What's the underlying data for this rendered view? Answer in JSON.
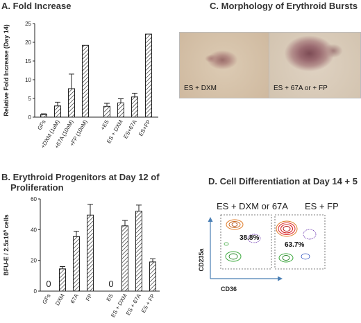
{
  "panels": {
    "a_title": "A. Fold Increase",
    "b_title_line1": "B. Erythroid Progenitors at Day 12 of",
    "b_title_line2": "Proliferation",
    "c_title": "C. Morphology of Erythroid Bursts",
    "d_title": "D. Cell Differentiation at Day 14 + 5"
  },
  "morphology": {
    "left_label": "ES + DXM",
    "right_label": "ES + 67A or + FP"
  },
  "flow": {
    "left_title": "ES + DXM or 67A",
    "right_title": "ES + FP",
    "left_percent": "38.8%",
    "right_percent": "63.7%",
    "y_label": "CD235a",
    "x_label": "CD36"
  },
  "chart_data": [
    {
      "type": "bar",
      "title": "A. Fold Increase",
      "ylabel": "Relative Fold Increase (Day 14)",
      "xlabel": "",
      "ylim": [
        0,
        25
      ],
      "yticks": [
        "0",
        "5",
        "10",
        "15",
        "20",
        "25"
      ],
      "categories": [
        "GFs",
        "+DXM (1uM)",
        "+67A (10nM)",
        "+FP (10nM)",
        "+ES",
        "ES + DXM",
        "ES+67A",
        "ES+FP"
      ],
      "values": [
        0.7,
        3.0,
        7.6,
        19.2,
        2.9,
        3.8,
        5.4,
        22.2
      ],
      "errors": [
        0.2,
        1.0,
        3.9,
        0,
        0.8,
        1.1,
        1.0,
        0
      ],
      "grid": false,
      "pattern": "diagonal-hatch"
    },
    {
      "type": "bar",
      "title": "B. Erythroid Progenitors at Day 12 of Proliferation",
      "ylabel": "BFU-E / 2.5x10",
      "ylabel_sup": "5",
      "ylabel_tail": " cells",
      "xlabel": "",
      "ylim": [
        0,
        60
      ],
      "yticks": [
        "0",
        "20",
        "40",
        "60"
      ],
      "categories": [
        "GFs",
        "DXM",
        "67A",
        "FP",
        "ES",
        "ES + DXM",
        "ES + 67A",
        "ES + FP"
      ],
      "values": [
        0,
        14.5,
        35.5,
        49.5,
        0,
        42.5,
        52,
        19
      ],
      "errors": [
        0,
        1.5,
        3.5,
        7,
        0,
        3.5,
        4,
        2
      ],
      "zero_labels": [
        "0",
        "",
        "",
        "",
        "0",
        "",
        "",
        ""
      ],
      "grid": false,
      "pattern": "diagonal-hatch"
    }
  ]
}
